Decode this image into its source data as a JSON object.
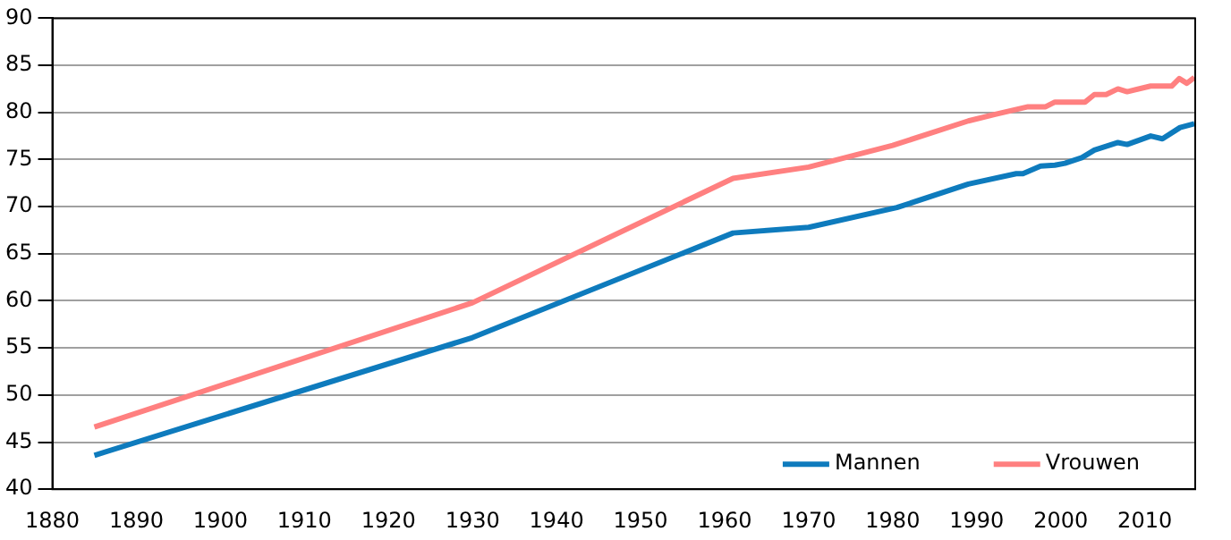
{
  "chart_data": {
    "type": "line",
    "xlim": [
      1880,
      2016
    ],
    "xticks": [
      1880,
      1890,
      1900,
      1910,
      1920,
      1930,
      1940,
      1950,
      1960,
      1970,
      1980,
      1990,
      2000,
      2010
    ],
    "ylim": [
      40,
      90
    ],
    "yticks": [
      40,
      45,
      50,
      55,
      60,
      65,
      70,
      75,
      80,
      85,
      90
    ],
    "grid": "y",
    "legend": "bottom right",
    "marker": "none",
    "line_style": "solid",
    "series": [
      {
        "name": "Mannen",
        "color": "#0e7bbd",
        "x": [
          1885,
          1930,
          1961,
          1970,
          1980.5,
          1989,
          1994.7,
          1995.5,
          1997.6,
          1999.3,
          2000.5,
          2002.5,
          2004,
          2006.8,
          2007.9,
          2010.7,
          2012.1,
          2014.2,
          2015.9
        ],
        "values": [
          43.6,
          56.1,
          67.2,
          67.8,
          69.9,
          72.4,
          73.5,
          73.5,
          74.3,
          74.4,
          74.6,
          75.2,
          76.0,
          76.8,
          76.6,
          77.5,
          77.2,
          78.4,
          78.8
        ]
      },
      {
        "name": "Vrouwen",
        "color": "#ff8080",
        "x": [
          1885,
          1930,
          1961,
          1970,
          1980,
          1989,
          1992.2,
          1996.1,
          1998.2,
          1999.3,
          2002.9,
          2004,
          2005.4,
          2006.8,
          2007.9,
          2010.7,
          2013.2,
          2014.1,
          2015,
          2015.9
        ],
        "values": [
          46.6,
          59.8,
          73.0,
          74.2,
          76.5,
          79.1,
          79.8,
          80.6,
          80.6,
          81.1,
          81.1,
          81.9,
          81.9,
          82.5,
          82.2,
          82.8,
          82.8,
          83.6,
          83.1,
          83.7
        ]
      }
    ]
  }
}
